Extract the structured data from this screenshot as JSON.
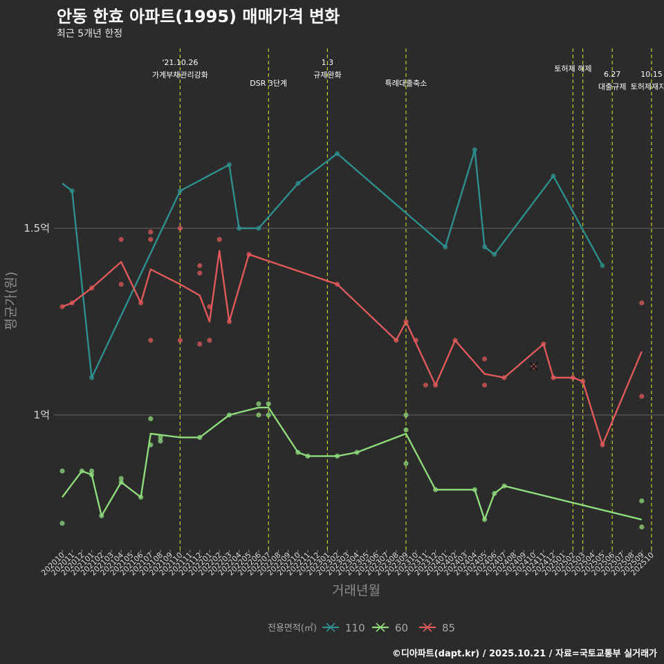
{
  "title": "안동 한효 아파트(1995) 매매가격 변화",
  "subtitle": "최근 5개년 한정",
  "caption": "©디아파트(dapt.kr) / 2025.10.21 / 자료=국토교통부 실거래가",
  "colors": {
    "s110": "#2f8f8f",
    "s60": "#8fdc7c",
    "s85": "#e05a5a",
    "vline": "#c8cc2a",
    "grid": "#595959",
    "bg": "#2b2b2b"
  },
  "chart_data": {
    "type": "line",
    "title": "안동 한효 아파트(1995) 매매가격 변화",
    "subtitle": "최근 5개년 한정",
    "xlabel": "거래년월",
    "ylabel": "평균가(원)",
    "x_categories": [
      "202010",
      "202011",
      "202012",
      "202101",
      "202102",
      "202103",
      "202104",
      "202105",
      "202106",
      "202107",
      "202108",
      "202109",
      "202110",
      "202111",
      "202112",
      "202201",
      "202202",
      "202203",
      "202204",
      "202205",
      "202206",
      "202207",
      "202208",
      "202209",
      "202210",
      "202211",
      "202212",
      "202301",
      "202302",
      "202303",
      "202304",
      "202305",
      "202306",
      "202307",
      "202308",
      "202309",
      "202310",
      "202311",
      "202312",
      "202401",
      "202402",
      "202403",
      "202404",
      "202405",
      "202406",
      "202407",
      "202408",
      "202409",
      "202410",
      "202411",
      "202412",
      "202501",
      "202502",
      "202503",
      "202504",
      "202505",
      "202506",
      "202507",
      "202508",
      "202509",
      "202510"
    ],
    "y_ticks": [
      {
        "value": 1.0,
        "label": "1억"
      },
      {
        "value": 1.5,
        "label": "1.5억"
      }
    ],
    "ylim": [
      0.64,
      1.98
    ],
    "legend": {
      "title": "전용면적(㎡)",
      "entries": [
        "110",
        "60",
        "85"
      ],
      "position": "bottom"
    },
    "series": [
      {
        "name": "110",
        "color_key": "s110",
        "line": [
          [
            "202010",
            1.62
          ],
          [
            "202011",
            1.6
          ],
          [
            "202101",
            1.1
          ],
          [
            "202110",
            1.6
          ],
          [
            "202203",
            1.67
          ],
          [
            "202204",
            1.5
          ],
          [
            "202206",
            1.5
          ],
          [
            "202210",
            1.62
          ],
          [
            "202302",
            1.7
          ],
          [
            "202401",
            1.45
          ],
          [
            "202404",
            1.71
          ],
          [
            "202405",
            1.45
          ],
          [
            "202406",
            1.43
          ],
          [
            "202412",
            1.64
          ],
          [
            "202505",
            1.4
          ]
        ],
        "points": [
          [
            "202011",
            1.6
          ],
          [
            "202101",
            1.1
          ],
          [
            "202110",
            1.6
          ],
          [
            "202203",
            1.67
          ],
          [
            "202204",
            1.5
          ],
          [
            "202206",
            1.5
          ],
          [
            "202210",
            1.62
          ],
          [
            "202302",
            1.7
          ],
          [
            "202401",
            1.45
          ],
          [
            "202404",
            1.71
          ],
          [
            "202405",
            1.45
          ],
          [
            "202406",
            1.43
          ],
          [
            "202412",
            1.64
          ],
          [
            "202505",
            1.4
          ]
        ]
      },
      {
        "name": "60",
        "color_key": "s60",
        "line": [
          [
            "202010",
            0.78
          ],
          [
            "202012",
            0.85
          ],
          [
            "202101",
            0.84
          ],
          [
            "202102",
            0.73
          ],
          [
            "202104",
            0.82
          ],
          [
            "202106",
            0.78
          ],
          [
            "202107",
            0.95
          ],
          [
            "202110",
            0.94
          ],
          [
            "202112",
            0.94
          ],
          [
            "202203",
            1.0
          ],
          [
            "202206",
            1.02
          ],
          [
            "202207",
            1.02
          ],
          [
            "202210",
            0.9
          ],
          [
            "202211",
            0.89
          ],
          [
            "202302",
            0.89
          ],
          [
            "202304",
            0.9
          ],
          [
            "202309",
            0.95
          ],
          [
            "202312",
            0.8
          ],
          [
            "202404",
            0.8
          ],
          [
            "202405",
            0.72
          ],
          [
            "202406",
            0.79
          ],
          [
            "202407",
            0.81
          ],
          [
            "202509",
            0.72
          ]
        ],
        "points": [
          [
            "202010",
            0.85
          ],
          [
            "202010",
            0.71
          ],
          [
            "202012",
            0.85
          ],
          [
            "202101",
            0.85
          ],
          [
            "202101",
            0.84
          ],
          [
            "202102",
            0.73
          ],
          [
            "202104",
            0.83
          ],
          [
            "202104",
            0.82
          ],
          [
            "202106",
            0.78
          ],
          [
            "202107",
            0.99
          ],
          [
            "202107",
            0.92
          ],
          [
            "202108",
            0.94
          ],
          [
            "202108",
            0.93
          ],
          [
            "202112",
            0.94
          ],
          [
            "202203",
            1.0
          ],
          [
            "202206",
            1.03
          ],
          [
            "202206",
            1.0
          ],
          [
            "202207",
            1.03
          ],
          [
            "202207",
            1.0
          ],
          [
            "202210",
            0.9
          ],
          [
            "202211",
            0.89
          ],
          [
            "202302",
            0.89
          ],
          [
            "202304",
            0.9
          ],
          [
            "202309",
            1.0
          ],
          [
            "202309",
            0.96
          ],
          [
            "202309",
            0.87
          ],
          [
            "202312",
            0.8
          ],
          [
            "202404",
            0.8
          ],
          [
            "202405",
            0.72
          ],
          [
            "202406",
            0.79
          ],
          [
            "202407",
            0.81
          ],
          [
            "202509",
            0.77
          ],
          [
            "202509",
            0.7
          ]
        ]
      },
      {
        "name": "85",
        "color_key": "s85",
        "line": [
          [
            "202010",
            1.29
          ],
          [
            "202011",
            1.3
          ],
          [
            "202101",
            1.34
          ],
          [
            "202104",
            1.41
          ],
          [
            "202106",
            1.3
          ],
          [
            "202107",
            1.39
          ],
          [
            "202110",
            1.35
          ],
          [
            "202112",
            1.32
          ],
          [
            "202201",
            1.25
          ],
          [
            "202202",
            1.44
          ],
          [
            "202203",
            1.25
          ],
          [
            "202205",
            1.43
          ],
          [
            "202302",
            1.35
          ],
          [
            "202308",
            1.2
          ],
          [
            "202309",
            1.25
          ],
          [
            "202312",
            1.08
          ],
          [
            "202402",
            1.2
          ],
          [
            "202405",
            1.11
          ],
          [
            "202407",
            1.1
          ],
          [
            "202411",
            1.19
          ],
          [
            "202412",
            1.1
          ],
          [
            "202502",
            1.1
          ],
          [
            "202503",
            1.09
          ],
          [
            "202505",
            0.92
          ],
          [
            "202509",
            1.17
          ]
        ],
        "points": [
          [
            "202010",
            1.29
          ],
          [
            "202011",
            1.3
          ],
          [
            "202101",
            1.34
          ],
          [
            "202104",
            1.47
          ],
          [
            "202104",
            1.35
          ],
          [
            "202106",
            1.3
          ],
          [
            "202107",
            1.49
          ],
          [
            "202107",
            1.47
          ],
          [
            "202107",
            1.2
          ],
          [
            "202110",
            1.5
          ],
          [
            "202110",
            1.2
          ],
          [
            "202112",
            1.4
          ],
          [
            "202112",
            1.38
          ],
          [
            "202112",
            1.19
          ],
          [
            "202201",
            1.29
          ],
          [
            "202201",
            1.2
          ],
          [
            "202202",
            1.47
          ],
          [
            "202203",
            1.25
          ],
          [
            "202205",
            1.43
          ],
          [
            "202302",
            1.35
          ],
          [
            "202308",
            1.2
          ],
          [
            "202309",
            1.25
          ],
          [
            "202310",
            1.2
          ],
          [
            "202311",
            1.08
          ],
          [
            "202312",
            1.08
          ],
          [
            "202402",
            1.2
          ],
          [
            "202405",
            1.15
          ],
          [
            "202405",
            1.08
          ],
          [
            "202407",
            1.1
          ],
          [
            "202411",
            1.19
          ],
          [
            "202412",
            1.1
          ],
          [
            "202502",
            1.1
          ],
          [
            "202503",
            1.09
          ],
          [
            "202505",
            0.92
          ],
          [
            "202509",
            1.3
          ],
          [
            "202509",
            1.05
          ]
        ],
        "highlight": [
          "202410",
          1.13
        ]
      }
    ],
    "events": [
      {
        "at": "202110",
        "lines": [
          "'21.10.26",
          "가계부채관리강화"
        ],
        "row": 0
      },
      {
        "at": "202207",
        "lines": [
          "DSR 3단계"
        ],
        "row": 2
      },
      {
        "at": "202301",
        "lines": [
          "1.3",
          "규제완화"
        ],
        "row": 0
      },
      {
        "at": "202309",
        "lines": [
          "특례대출축소"
        ],
        "row": 2
      },
      {
        "at": "202502",
        "lines": [
          "토허제 해제"
        ],
        "row": 1
      },
      {
        "at": "202503",
        "lines": [],
        "row": 1
      },
      {
        "at": "202506",
        "lines": [
          "6.27",
          "대출규제"
        ],
        "row": 2
      },
      {
        "at": "202510",
        "lines": [
          "10.15",
          "토허제재지정"
        ],
        "row": 2
      }
    ]
  }
}
